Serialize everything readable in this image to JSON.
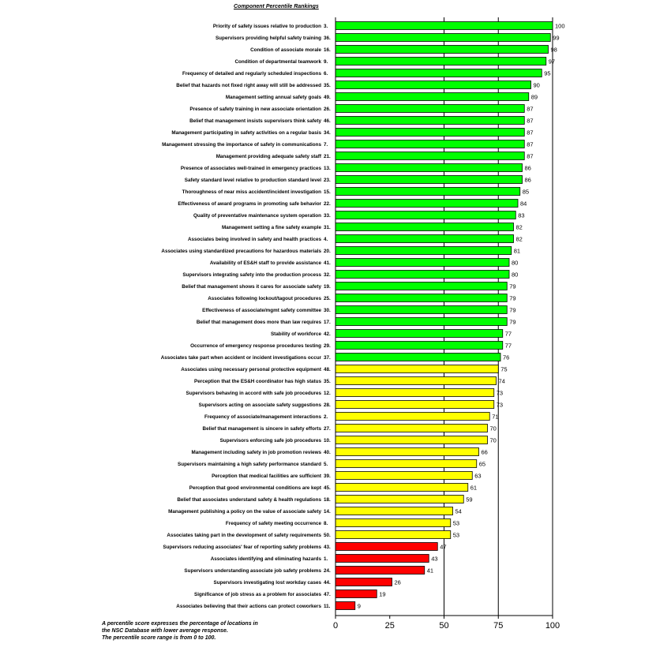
{
  "chart_data": {
    "type": "bar",
    "orientation": "horizontal",
    "title": "Component Percentile Rankings",
    "xlim": [
      0,
      100
    ],
    "xticks": [
      "0",
      "25",
      "50",
      "75",
      "100"
    ],
    "grid": "vertical lines at 50, 75, 100",
    "colors": {
      "high": "#00ff00",
      "mid": "#ffff00",
      "low": "#ff0000",
      "outline": "#000000"
    },
    "bars": [
      {
        "label": "Priority of safety issues relative to production",
        "id": "3.",
        "value": 100,
        "color": "high"
      },
      {
        "label": "Supervisors providing helpful safety training",
        "id": "36.",
        "value": 99,
        "color": "high"
      },
      {
        "label": "Condition of associate morale",
        "id": "16.",
        "value": 98,
        "color": "high"
      },
      {
        "label": "Condition of departmental teamwork",
        "id": "9.",
        "value": 97,
        "color": "high"
      },
      {
        "label": "Frequency of detailed and regularly scheduled inspections",
        "id": "6.",
        "value": 95,
        "color": "high"
      },
      {
        "label": "Belief that hazards not fixed right away will still be addressed",
        "id": "35.",
        "value": 90,
        "color": "high"
      },
      {
        "label": "Management setting annual safety goals",
        "id": "49.",
        "value": 89,
        "color": "high"
      },
      {
        "label": "Presence of safety training in new associate orientation",
        "id": "26.",
        "value": 87,
        "color": "high"
      },
      {
        "label": "Belief that management insists supervisors think safety",
        "id": "46.",
        "value": 87,
        "color": "high"
      },
      {
        "label": "Management participating in safety activities on a regular basis",
        "id": "34.",
        "value": 87,
        "color": "high"
      },
      {
        "label": "Management stressing the importance of safety in communications",
        "id": "7.",
        "value": 87,
        "color": "high"
      },
      {
        "label": "Management providing adequate safety staff",
        "id": "21.",
        "value": 87,
        "color": "high"
      },
      {
        "label": "Presence of associates well-trained in emergency practices",
        "id": "13.",
        "value": 86,
        "color": "high"
      },
      {
        "label": "Safety standard level relative to production standard level",
        "id": "23.",
        "value": 86,
        "color": "high"
      },
      {
        "label": "Thoroughness of near miss accident/incident investigation",
        "id": "15.",
        "value": 85,
        "color": "high"
      },
      {
        "label": "Effectiveness of award programs in promoting safe behavior",
        "id": "22.",
        "value": 84,
        "color": "high"
      },
      {
        "label": "Quality of preventative maintenance system operation",
        "id": "33.",
        "value": 83,
        "color": "high"
      },
      {
        "label": "Management setting a fine safety example",
        "id": "31.",
        "value": 82,
        "color": "high"
      },
      {
        "label": "Associates being involved in safety and health practices",
        "id": "4.",
        "value": 82,
        "color": "high"
      },
      {
        "label": "Associates using standardized precautions for hazardous materials",
        "id": "20.",
        "value": 81,
        "color": "high"
      },
      {
        "label": "Availability of ES&H staff to provide assistance",
        "id": "41.",
        "value": 80,
        "color": "high"
      },
      {
        "label": "Supervisors integrating safety into the production process",
        "id": "32.",
        "value": 80,
        "color": "high"
      },
      {
        "label": "Belief that management shows it cares for associate safety",
        "id": "19.",
        "value": 79,
        "color": "high"
      },
      {
        "label": "Associates following lockout/tagout procedures",
        "id": "25.",
        "value": 79,
        "color": "high"
      },
      {
        "label": "Effectiveness of associate/mgmt safety committee",
        "id": "30.",
        "value": 79,
        "color": "high"
      },
      {
        "label": "Belief that management does more than law requires",
        "id": "17.",
        "value": 79,
        "color": "high"
      },
      {
        "label": "Stability of workforce",
        "id": "42.",
        "value": 77,
        "color": "high"
      },
      {
        "label": "Occurrence of emergency response procedures testing",
        "id": "29.",
        "value": 77,
        "color": "high"
      },
      {
        "label": "Associates take part when accident or incident investigations occur",
        "id": "37.",
        "value": 76,
        "color": "high"
      },
      {
        "label": "Associates using necessary personal protective equipment",
        "id": "48.",
        "value": 75,
        "color": "mid"
      },
      {
        "label": "Perception that the ES&H coordinator has high status",
        "id": "35.",
        "value": 74,
        "color": "mid"
      },
      {
        "label": "Supervisors behaving in accord with safe job procedures",
        "id": "12.",
        "value": 73,
        "color": "mid"
      },
      {
        "label": "Supervisors acting on associate safety suggestions",
        "id": "28.",
        "value": 73,
        "color": "mid"
      },
      {
        "label": "Frequency of associate/management interactions",
        "id": "2.",
        "value": 71,
        "color": "mid"
      },
      {
        "label": "Belief that management is sincere in safety efforts",
        "id": "27.",
        "value": 70,
        "color": "mid"
      },
      {
        "label": "Supervisors enforcing safe job procedures",
        "id": "10.",
        "value": 70,
        "color": "mid"
      },
      {
        "label": "Management including safety in job promotion reviews",
        "id": "40.",
        "value": 66,
        "color": "mid"
      },
      {
        "label": "Supervisors maintaining a high safety performance standard",
        "id": "5.",
        "value": 65,
        "color": "mid"
      },
      {
        "label": "Perception that medical facilities are sufficient",
        "id": "39.",
        "value": 63,
        "color": "mid"
      },
      {
        "label": "Perception that good environmental conditions are kept",
        "id": "45.",
        "value": 61,
        "color": "mid"
      },
      {
        "label": "Belief that associates understand safety & health regulations",
        "id": "18.",
        "value": 59,
        "color": "mid"
      },
      {
        "label": "Management publishing a policy on the value of associate safety",
        "id": "14.",
        "value": 54,
        "color": "mid"
      },
      {
        "label": "Frequency of safety meeting occurrence",
        "id": "8.",
        "value": 53,
        "color": "mid"
      },
      {
        "label": "Associates taking part in the development of safety requirements",
        "id": "50.",
        "value": 53,
        "color": "mid"
      },
      {
        "label": "Supervisors reducing associates' fear of reporting safety problems",
        "id": "43.",
        "value": 47,
        "color": "low"
      },
      {
        "label": "Associates identifying and eliminating hazards",
        "id": "1.",
        "value": 43,
        "color": "low"
      },
      {
        "label": "Supervisors understanding associate job safety problems",
        "id": "24.",
        "value": 41,
        "color": "low"
      },
      {
        "label": "Supervisors investigating lost workday cases",
        "id": "44.",
        "value": 26,
        "color": "low"
      },
      {
        "label": "Significance of job stress as a problem for associates",
        "id": "47.",
        "value": 19,
        "color": "low"
      },
      {
        "label": "Associates believing that their actions can protect coworkers",
        "id": "11.",
        "value": 9,
        "color": "low"
      }
    ]
  },
  "footnote": {
    "line1": "A percentile score expresses the percentage of locations in",
    "line2": "the NSC Database with lower average response.",
    "line3": "The percentile score range is from 0 to 100."
  }
}
